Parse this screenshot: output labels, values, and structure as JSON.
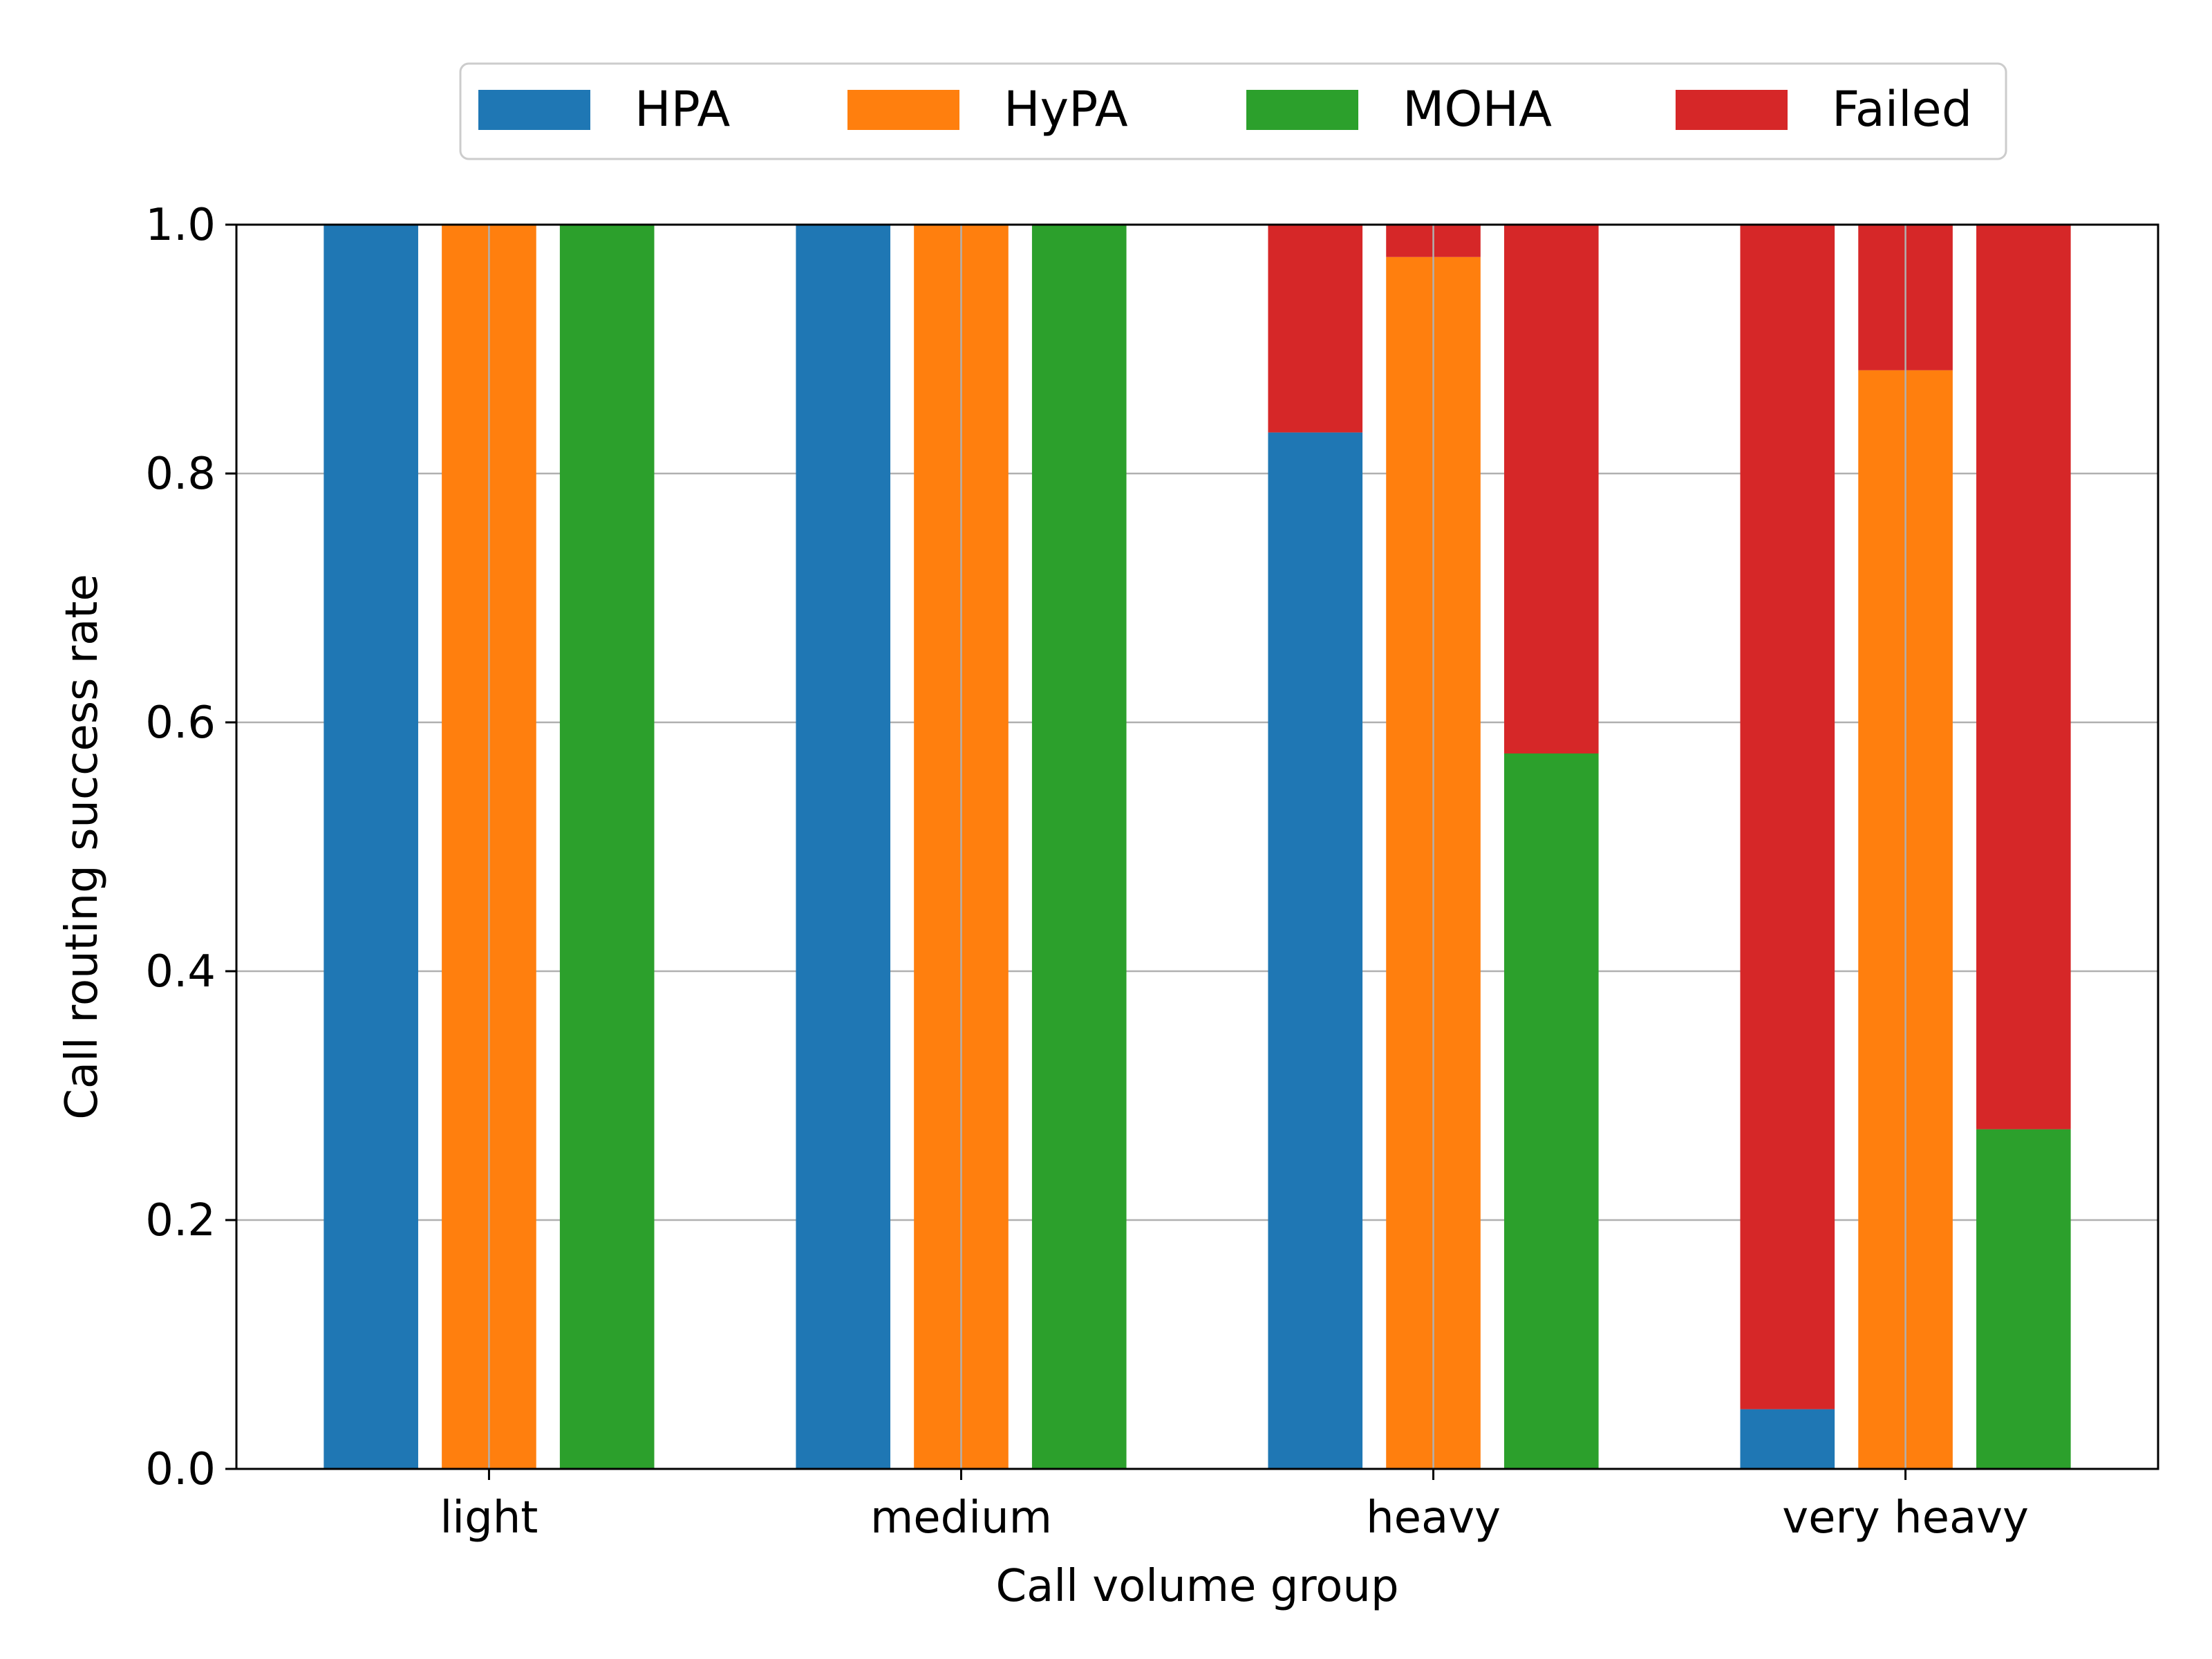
{
  "chart_data": {
    "type": "bar",
    "stacked_remainder_label": "Failed",
    "categories": [
      "light",
      "medium",
      "heavy",
      "very heavy"
    ],
    "series": [
      {
        "name": "HPA",
        "values": [
          1.0,
          1.0,
          0.833,
          0.048
        ]
      },
      {
        "name": "HyPA",
        "values": [
          1.0,
          1.0,
          0.974,
          0.883
        ]
      },
      {
        "name": "MOHA",
        "values": [
          1.0,
          1.0,
          0.575,
          0.273
        ]
      }
    ],
    "xlabel": "Call volume group",
    "ylabel": "Call routing success rate",
    "ylim": [
      0.0,
      1.0
    ],
    "yticks": [
      "0.0",
      "0.2",
      "0.4",
      "0.6",
      "0.8",
      "1.0"
    ],
    "grid": true,
    "legend": {
      "placement": "top-center, above plot",
      "entries": [
        "HPA",
        "HyPA",
        "MOHA",
        "Failed"
      ]
    },
    "colors": {
      "HPA": "#1f77b4",
      "HyPA": "#ff7f0e",
      "MOHA": "#2ca02c",
      "Failed": "#d62728"
    }
  }
}
